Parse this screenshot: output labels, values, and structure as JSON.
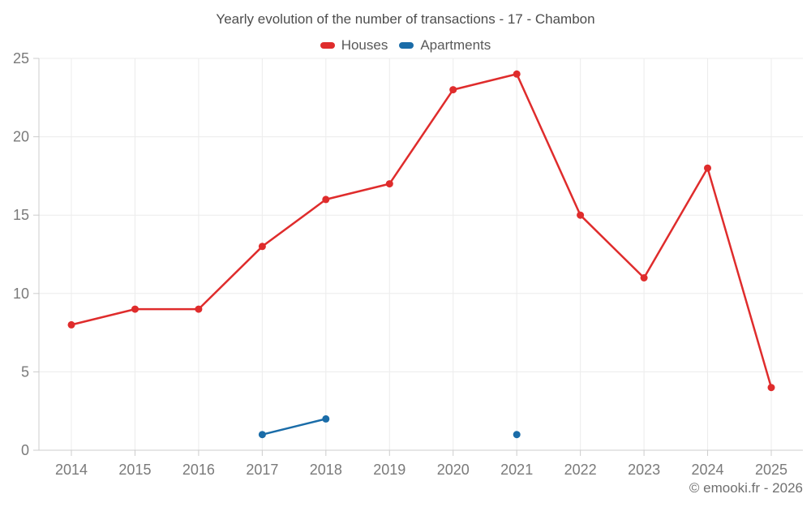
{
  "footer": {
    "credit": "© emooki.fr - 2026"
  },
  "chart_data": {
    "type": "line",
    "title": "Yearly evolution of the number of transactions - 17 - Chambon",
    "x": [
      2014,
      2015,
      2016,
      2017,
      2018,
      2019,
      2020,
      2021,
      2022,
      2023,
      2024,
      2025
    ],
    "series": [
      {
        "name": "Houses",
        "color": "#df2c2c",
        "values": [
          8,
          9,
          9,
          13,
          16,
          17,
          23,
          24,
          15,
          11,
          18,
          4
        ]
      },
      {
        "name": "Apartments",
        "color": "#1a6ca8",
        "values": [
          null,
          null,
          null,
          1,
          2,
          null,
          null,
          1,
          null,
          null,
          null,
          null
        ]
      }
    ],
    "xlabel": "",
    "ylabel": "",
    "ylim": [
      0,
      25
    ],
    "y_ticks": [
      0,
      5,
      10,
      15,
      20,
      25
    ],
    "grid": true,
    "legend_position": "top",
    "marker": "circle"
  },
  "style": {
    "grid_color": "#ececec",
    "axis_color": "#cccccc",
    "tick_label_color": "#7a7a7a"
  }
}
